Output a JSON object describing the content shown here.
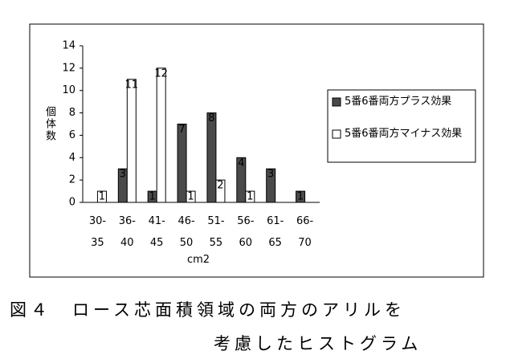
{
  "chart_data": {
    "type": "bar",
    "categories": [
      "30-\n35",
      "36-\n40",
      "41-\n45",
      "46-\n50",
      "51-\n55",
      "56-\n60",
      "61-\n65",
      "66-\n70"
    ],
    "series": [
      {
        "name": "5番6番両方プラス効果",
        "color": "#4a4a4a",
        "values": [
          0,
          3,
          1,
          7,
          8,
          4,
          3,
          1
        ]
      },
      {
        "name": "5番6番両方マイナス効果",
        "color": "#ffffff",
        "values": [
          1,
          11,
          12,
          1,
          2,
          1,
          0,
          0
        ]
      }
    ],
    "ylabel": "個体数",
    "xlabel": "cm2",
    "ylim": [
      0,
      14
    ],
    "yticks": [
      0,
      2,
      4,
      6,
      8,
      10,
      12,
      14
    ]
  },
  "caption": [
    "図４　ロース芯面積領域の両方のアリルを",
    "考慮したヒストグラム"
  ]
}
